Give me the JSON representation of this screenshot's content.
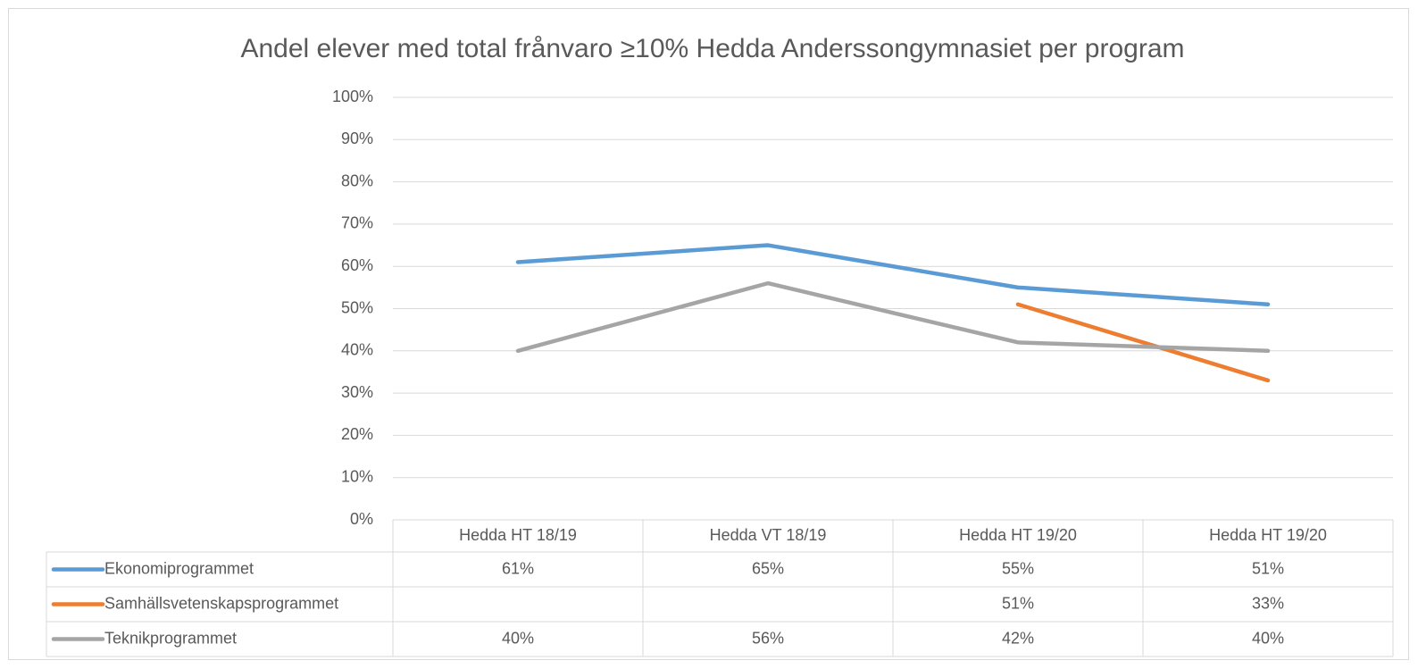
{
  "chart_data": {
    "type": "line",
    "title": "Andel elever med total frånvaro ≥10% Hedda Anderssongymnasiet per program",
    "categories": [
      "Hedda HT 18/19",
      "Hedda VT 18/19",
      "Hedda HT 19/20",
      "Hedda HT 19/20"
    ],
    "series": [
      {
        "name": "Ekonomiprogrammet",
        "color": "#5b9bd5",
        "values": [
          61,
          65,
          55,
          51
        ],
        "value_labels": [
          "61%",
          "65%",
          "55%",
          "51%"
        ]
      },
      {
        "name": "Samhällsvetenskapsprogrammet",
        "color": "#ed7d31",
        "values": [
          null,
          null,
          51,
          33
        ],
        "value_labels": [
          null,
          null,
          "51%",
          "33%"
        ]
      },
      {
        "name": "Teknikprogrammet",
        "color": "#a5a5a5",
        "values": [
          40,
          56,
          42,
          40
        ],
        "value_labels": [
          "40%",
          "56%",
          "42%",
          "40%"
        ]
      }
    ],
    "ylim": [
      0,
      100
    ],
    "yticks": [
      {
        "value": 0,
        "label": "0%"
      },
      {
        "value": 10,
        "label": "10%"
      },
      {
        "value": 20,
        "label": "20%"
      },
      {
        "value": 30,
        "label": "30%"
      },
      {
        "value": 40,
        "label": "40%"
      },
      {
        "value": 50,
        "label": "50%"
      },
      {
        "value": 60,
        "label": "60%"
      },
      {
        "value": 70,
        "label": "70%"
      },
      {
        "value": 80,
        "label": "80%"
      },
      {
        "value": 90,
        "label": "90%"
      },
      {
        "value": 100,
        "label": "100%"
      }
    ],
    "grid": true,
    "data_table": true
  }
}
